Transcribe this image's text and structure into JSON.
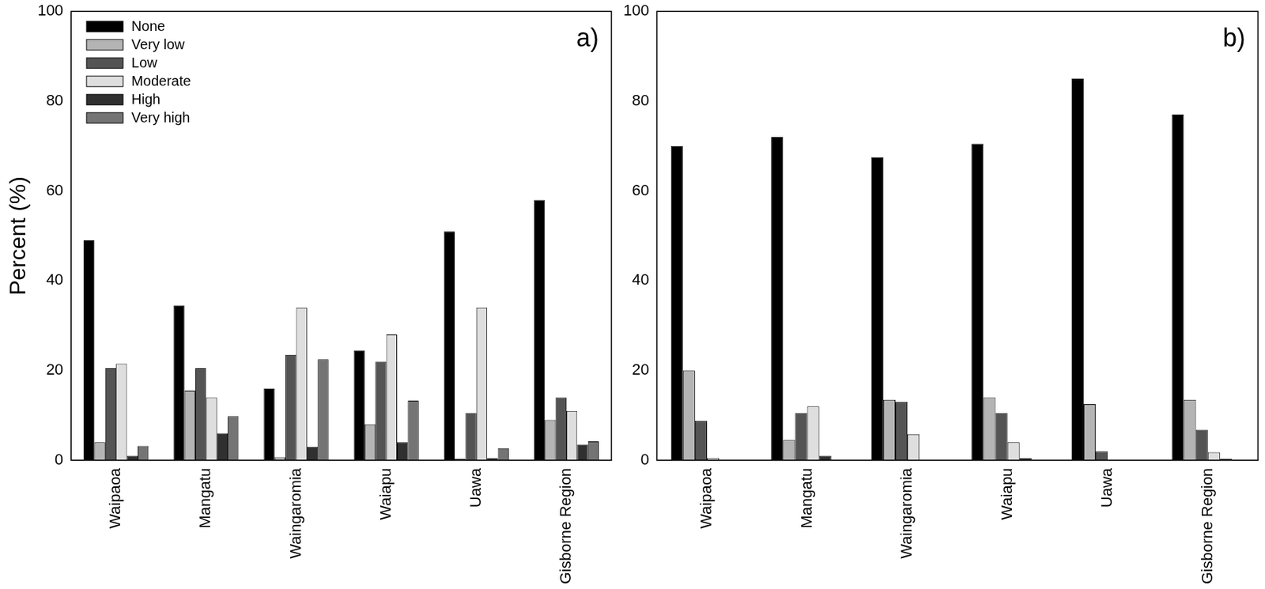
{
  "chart_data": [
    {
      "type": "bar",
      "annotation": "a)",
      "y_label": "Percent (%)",
      "categories": [
        "Waipaoa",
        "Mangatu",
        "Waingaromia",
        "Waiapu",
        "Uawa",
        "Gisborne Region"
      ],
      "series": [
        {
          "name": "None",
          "color": "#000000",
          "values": [
            49,
            34.5,
            16,
            24.5,
            51,
            58
          ]
        },
        {
          "name": "Very low",
          "color": "#b4b4b4",
          "values": [
            4,
            15.5,
            0.7,
            8,
            0.3,
            9
          ]
        },
        {
          "name": "Low",
          "color": "#545454",
          "values": [
            20.5,
            20.5,
            23.5,
            22,
            10.5,
            14
          ]
        },
        {
          "name": "Moderate",
          "color": "#dedede",
          "values": [
            21.5,
            14,
            34,
            28,
            34,
            11
          ]
        },
        {
          "name": "High",
          "color": "#303030",
          "values": [
            1,
            6,
            3,
            4,
            0.5,
            3.5
          ]
        },
        {
          "name": "Very high",
          "color": "#747474",
          "values": [
            3.2,
            9.8,
            22.5,
            13.3,
            2.7,
            4.2
          ]
        }
      ],
      "ylim": [
        0,
        100
      ],
      "yticks": [
        0,
        20,
        40,
        60,
        80,
        100
      ],
      "grid": false,
      "legend": "upper left"
    },
    {
      "type": "bar",
      "annotation": "b)",
      "categories": [
        "Waipaoa",
        "Mangatu",
        "Waingaromia",
        "Waiapu",
        "Uawa",
        "Gisborne Region"
      ],
      "series": [
        {
          "name": "None",
          "color": "#000000",
          "values": [
            70,
            72,
            67.5,
            70.5,
            85,
            77
          ]
        },
        {
          "name": "Very low",
          "color": "#b4b4b4",
          "values": [
            20,
            4.5,
            13.5,
            14,
            12.5,
            13.5
          ]
        },
        {
          "name": "Low",
          "color": "#545454",
          "values": [
            8.8,
            10.5,
            13,
            10.5,
            2,
            6.8
          ]
        },
        {
          "name": "Moderate",
          "color": "#dedede",
          "values": [
            0.5,
            12,
            5.8,
            4,
            0,
            1.8
          ]
        },
        {
          "name": "High",
          "color": "#303030",
          "values": [
            0,
            1,
            0,
            0.5,
            0,
            0.3
          ]
        },
        {
          "name": "Very high",
          "color": "#747474",
          "values": [
            0,
            0,
            0,
            0,
            0,
            0
          ]
        }
      ],
      "ylim": [
        0,
        100
      ],
      "yticks": [
        0,
        20,
        40,
        60,
        80,
        100
      ],
      "grid": false,
      "legend": false
    }
  ]
}
